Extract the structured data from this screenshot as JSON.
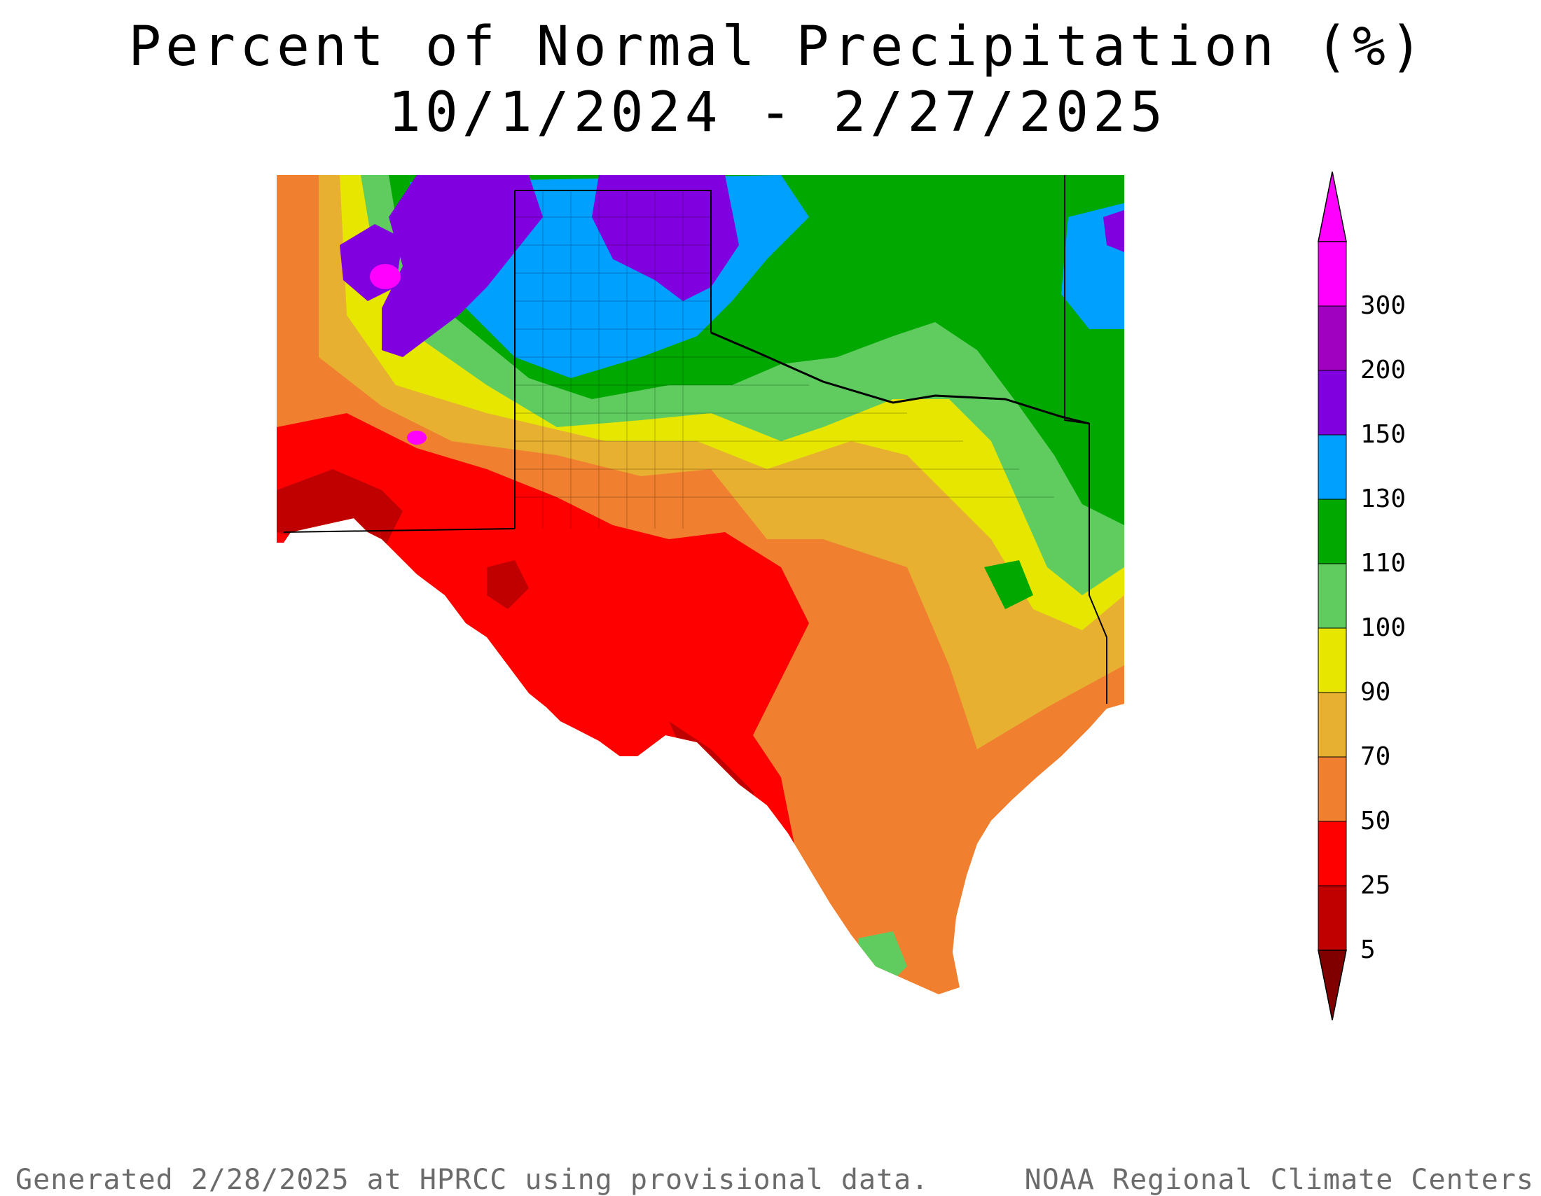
{
  "title": "Percent of Normal Precipitation (%)",
  "subtitle": "10/1/2024 - 2/27/2025",
  "legend": {
    "bins": [
      {
        "label": "5",
        "color": "#c00000"
      },
      {
        "label": "25",
        "color": "#ff0000"
      },
      {
        "label": "50",
        "color": "#f08030"
      },
      {
        "label": "70",
        "color": "#e8b030"
      },
      {
        "label": "90",
        "color": "#e6e600"
      },
      {
        "label": "100",
        "color": "#60cc60"
      },
      {
        "label": "110",
        "color": "#00a800"
      },
      {
        "label": "130",
        "color": "#00a0ff"
      },
      {
        "label": "150",
        "color": "#8000e0"
      },
      {
        "label": "200",
        "color": "#a000c0"
      },
      {
        "label": "300",
        "color": "#ff00ff"
      }
    ],
    "below_color": "#800000",
    "above_color": "#ff00ff"
  },
  "footer": {
    "left": "Generated 2/28/2025 at HPRCC using provisional data.",
    "right": "NOAA Regional Climate Centers"
  },
  "map": {
    "region_colors": {
      "dark_red": "#c00000",
      "red": "#ff0000",
      "orange": "#f08030",
      "light_orange": "#e8b030",
      "yellow": "#e6e600",
      "light_green": "#60cc60",
      "green": "#00a800",
      "blue": "#00a0ff",
      "purple": "#8000e0",
      "magenta": "#ff00ff"
    }
  }
}
